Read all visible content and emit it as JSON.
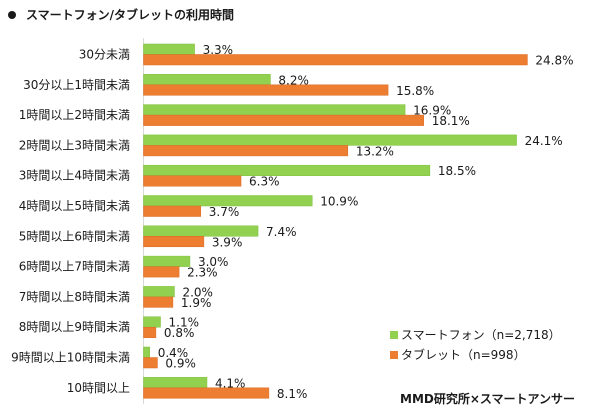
{
  "chart_data": {
    "type": "bar",
    "orientation": "horizontal",
    "title": "スマートフォン/タブレットの利用時間",
    "xlabel": "",
    "ylabel": "",
    "xlim": [
      0,
      25
    ],
    "grid": false,
    "legend_position": "bottom-right",
    "categories": [
      "30分未満",
      "30分以上1時間未満",
      "1時間以上2時間未満",
      "2時間以上3時間未満",
      "3時間以上4時間未満",
      "4時間以上5時間未満",
      "5時間以上6時間未満",
      "6時間以上7時間未満",
      "7時間以上8時間未満",
      "8時間以上9時間未満",
      "9時間以上10時間未満",
      "10時間以上"
    ],
    "series": [
      {
        "name": "スマートフォン（n=2,718）",
        "color": "#92D050",
        "values": [
          3.3,
          8.2,
          16.9,
          24.1,
          18.5,
          10.9,
          7.4,
          3.0,
          2.0,
          1.1,
          0.4,
          4.1
        ],
        "labels": [
          "3.3%",
          "8.2%",
          "16.9%",
          "24.1%",
          "18.5%",
          "10.9%",
          "7.4%",
          "3.0%",
          "2.0%",
          "1.1%",
          "0.4%",
          "4.1%"
        ]
      },
      {
        "name": "タブレット（n=998）",
        "color": "#ED7D31",
        "values": [
          24.8,
          15.8,
          18.1,
          13.2,
          6.3,
          3.7,
          3.9,
          2.3,
          1.9,
          0.8,
          0.9,
          8.1
        ],
        "labels": [
          "24.8%",
          "15.8%",
          "18.1%",
          "13.2%",
          "6.3%",
          "3.7%",
          "3.9%",
          "2.3%",
          "1.9%",
          "0.8%",
          "0.9%",
          "8.1%"
        ]
      }
    ],
    "source": "MMD研究所×スマートアンサー"
  }
}
